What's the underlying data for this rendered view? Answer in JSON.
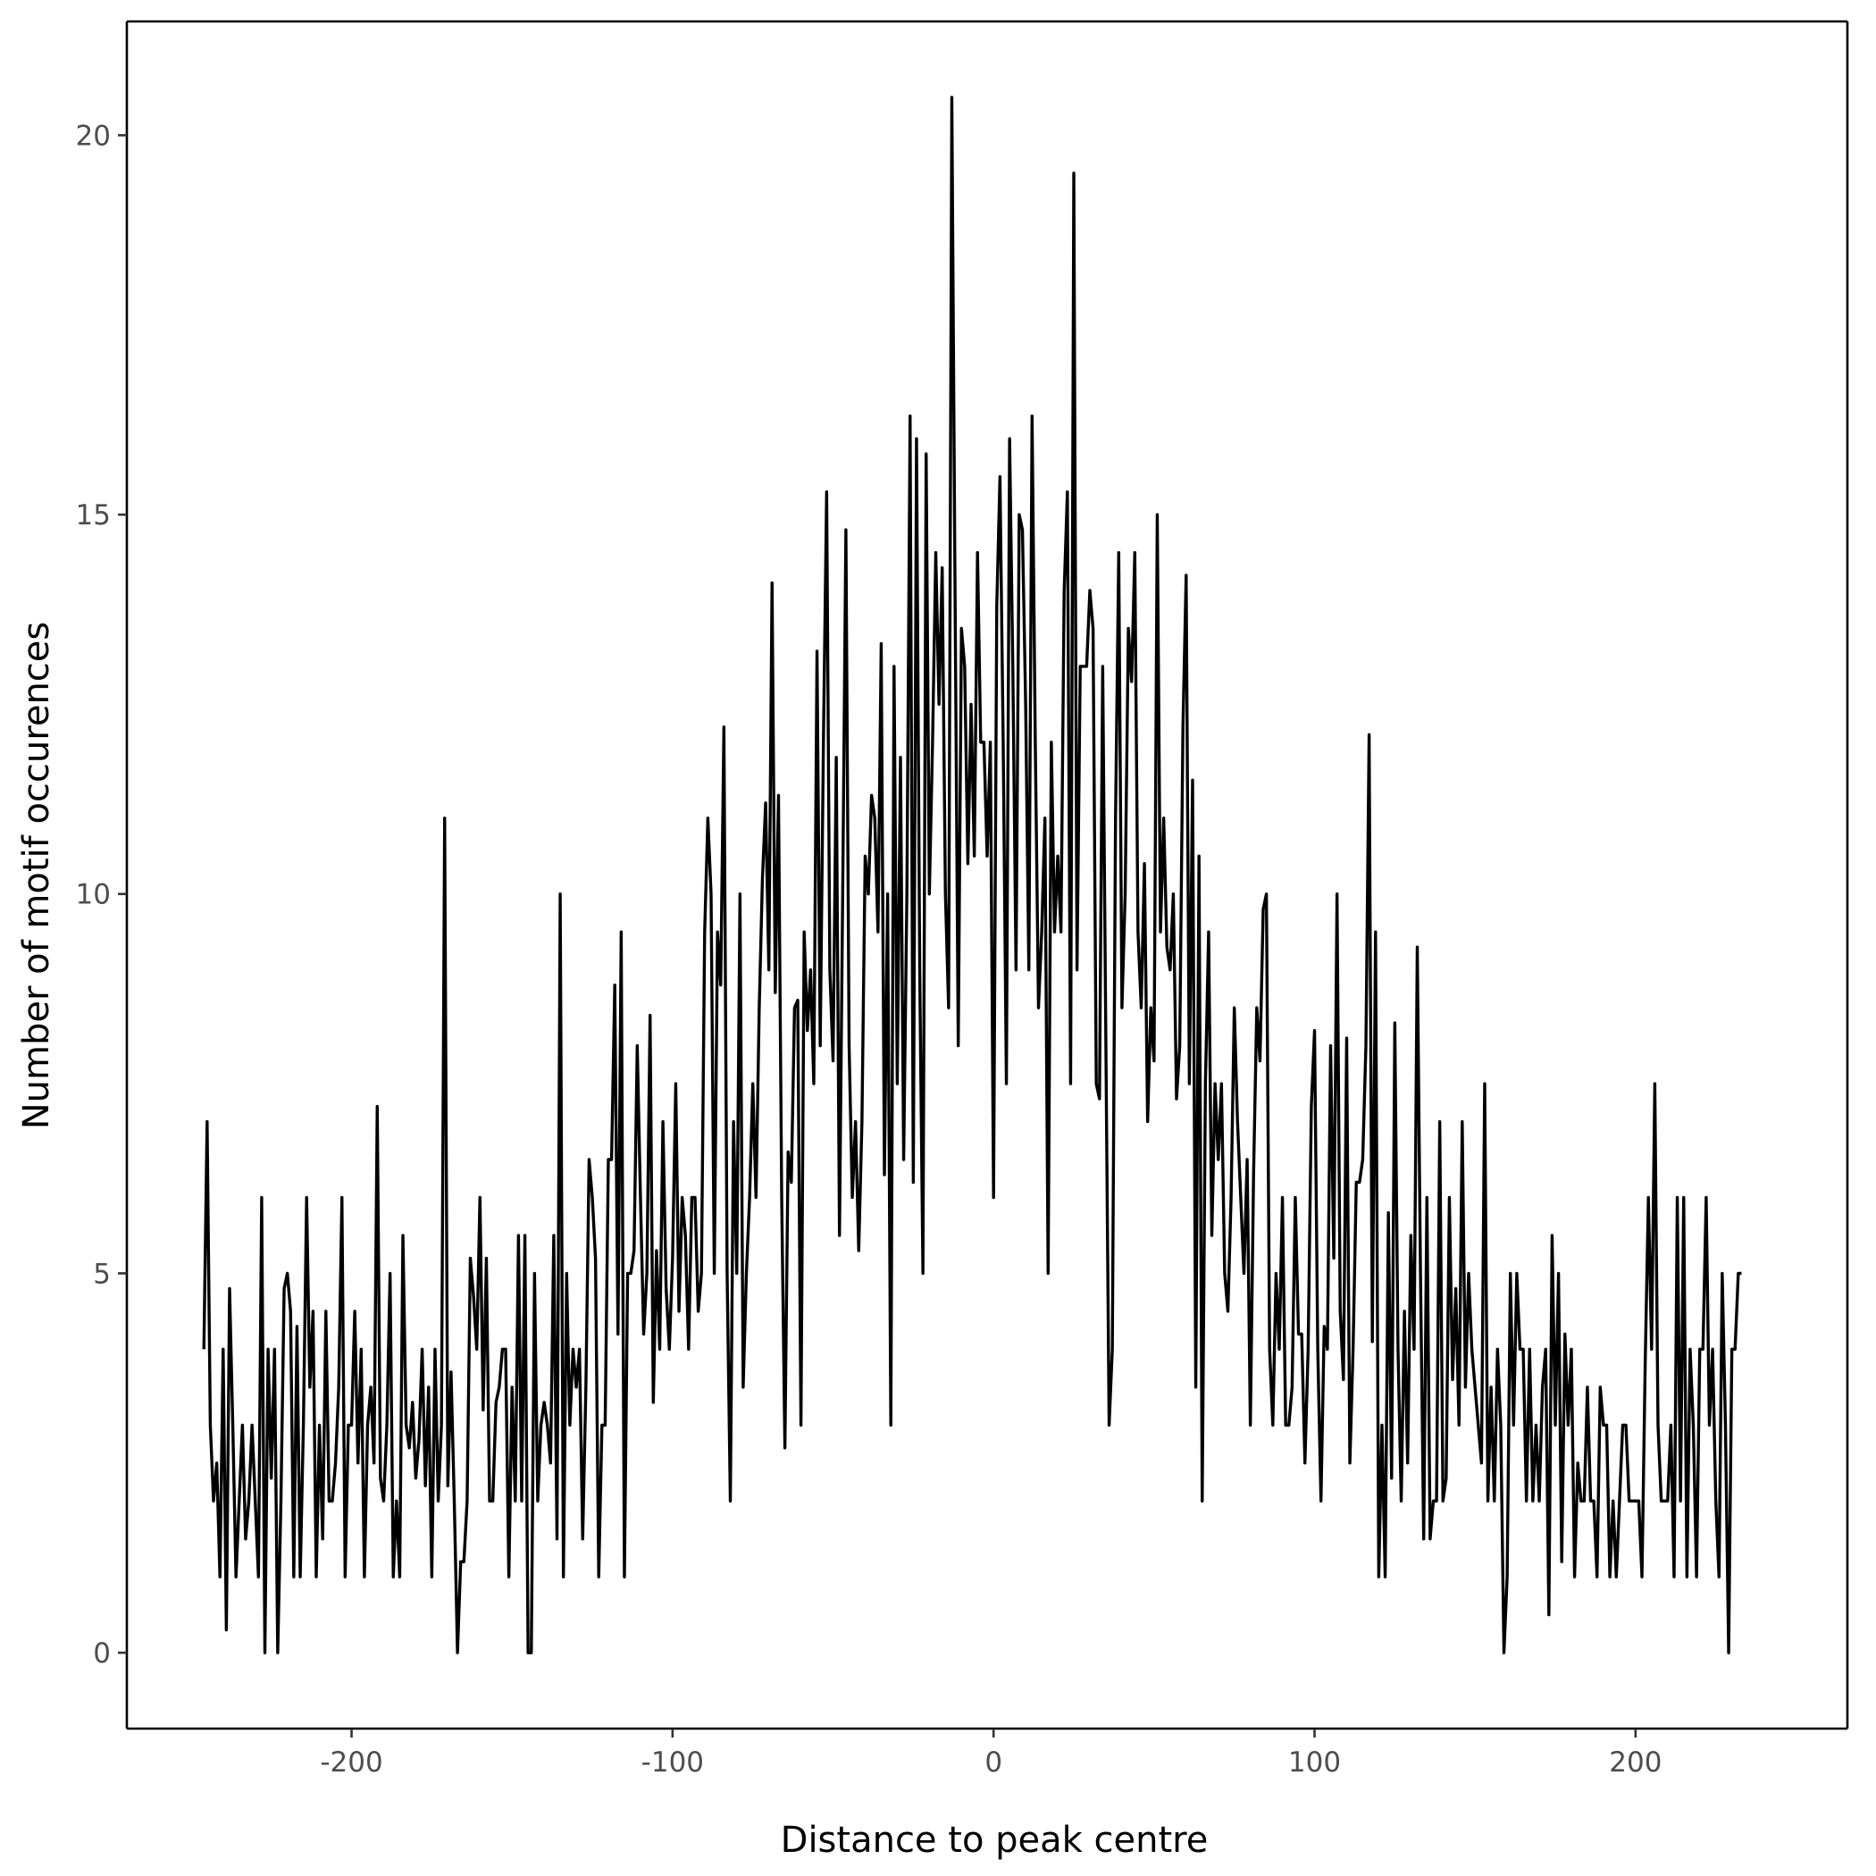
{
  "chart_data": {
    "type": "line",
    "title": "",
    "xlabel": "Distance to peak centre",
    "ylabel": "Number of motif occurences",
    "xlim": [
      -270,
      266
    ],
    "ylim": [
      -1.0,
      21.5
    ],
    "grid": false,
    "legend": "none",
    "line_color": "#000000",
    "x_ticks": [
      {
        "value": -200,
        "label": "-200"
      },
      {
        "value": -100,
        "label": "-100"
      },
      {
        "value": 0,
        "label": "0"
      },
      {
        "value": 100,
        "label": "100"
      },
      {
        "value": 200,
        "label": "200"
      }
    ],
    "y_ticks": [
      {
        "value": 0,
        "label": "0"
      },
      {
        "value": 5,
        "label": "5"
      },
      {
        "value": 10,
        "label": "10"
      },
      {
        "value": 15,
        "label": "15"
      },
      {
        "value": 20,
        "label": "20"
      }
    ],
    "x_start": -246,
    "x_step": 1,
    "series": [
      {
        "values": [
          4,
          7,
          3,
          2,
          2.5,
          1,
          4,
          0.3,
          4.8,
          3,
          1,
          2,
          3,
          1.5,
          2,
          3,
          2,
          1,
          6,
          0,
          4,
          2.3,
          4,
          0,
          2,
          4.8,
          5,
          4.5,
          1,
          4.3,
          1,
          3,
          6,
          3.5,
          4.5,
          1,
          3,
          1.5,
          4.5,
          2,
          2,
          2.5,
          3.5,
          6,
          1,
          3,
          3,
          4.5,
          2.5,
          4,
          1,
          3,
          3.5,
          2.5,
          7.2,
          2.3,
          2,
          3,
          5,
          1,
          2,
          1,
          5.5,
          3,
          2.7,
          3.3,
          2.3,
          2.8,
          4,
          2.2,
          3.5,
          1,
          4,
          2,
          3,
          11,
          2.2,
          3.7,
          2,
          0,
          1.2,
          1.2,
          2,
          5.2,
          4.7,
          4,
          6,
          3.2,
          5.2,
          2,
          2,
          3.3,
          3.5,
          4,
          4,
          1,
          3.5,
          2,
          5.5,
          2,
          5.5,
          0,
          0,
          5,
          2,
          3,
          3.3,
          3,
          2.5,
          5.5,
          1.5,
          10,
          1,
          5,
          3,
          4,
          3.5,
          4,
          1.5,
          3.5,
          6.5,
          6,
          5.2,
          1,
          3,
          3,
          6.5,
          6.5,
          8.8,
          4.2,
          9.5,
          1,
          5,
          5,
          5.3,
          8,
          6,
          4.2,
          5,
          8.4,
          3.3,
          5.3,
          4,
          7,
          4.8,
          4,
          5.2,
          7.5,
          4.5,
          6,
          5.5,
          4,
          6,
          6,
          4.5,
          5,
          9.5,
          11,
          10,
          5,
          9.5,
          8.8,
          12.2,
          5,
          2,
          7,
          5,
          10,
          3.5,
          5,
          6,
          7.5,
          6,
          8.5,
          10.2,
          11.2,
          9,
          14.1,
          8.7,
          11.3,
          6,
          2.7,
          6.6,
          6.2,
          8.5,
          8.6,
          3,
          9.5,
          8.2,
          9,
          7.5,
          13.2,
          8,
          12,
          15.3,
          9,
          7.8,
          11.8,
          5.5,
          10,
          14.8,
          8,
          6,
          7,
          5.3,
          7,
          10.5,
          10,
          11.3,
          11,
          9.5,
          13.3,
          6.3,
          10,
          3,
          13,
          7.5,
          11.8,
          6.5,
          10,
          16.3,
          6.2,
          16,
          9,
          5,
          15.8,
          10,
          12,
          14.5,
          12.5,
          14.3,
          10,
          8.5,
          20.5,
          14,
          8,
          13.5,
          13,
          10.4,
          12.5,
          10.5,
          14.5,
          12,
          12,
          10.5,
          12,
          6,
          13.8,
          15.5,
          12,
          7.5,
          16,
          13,
          9,
          15,
          14.8,
          12.5,
          9,
          16.3,
          12,
          8.5,
          9.5,
          11,
          5,
          12,
          9.5,
          10.5,
          9.5,
          14,
          15.3,
          7.5,
          19.5,
          9,
          13,
          13,
          13,
          14,
          13.5,
          7.5,
          7.3,
          13,
          8,
          3,
          4,
          11,
          14.5,
          8.5,
          10,
          13.5,
          12.8,
          14.5,
          9.5,
          8.5,
          10.4,
          7,
          8.5,
          7.8,
          15,
          9.5,
          11,
          9.3,
          9,
          10,
          7.3,
          8,
          12.2,
          14.2,
          7.5,
          11.5,
          3.5,
          10.5,
          2,
          7.5,
          9.5,
          5.5,
          7.5,
          6.5,
          7.5,
          5,
          4.5,
          6,
          8.5,
          7,
          6,
          5,
          6.5,
          3,
          6.3,
          8.5,
          7.8,
          9.8,
          10,
          4,
          3,
          5,
          4,
          6,
          3,
          3,
          3.5,
          6,
          4.2,
          4.2,
          2.5,
          4,
          7.2,
          8.2,
          4,
          2,
          4.3,
          4,
          8,
          5.2,
          10,
          4.5,
          3.6,
          8.1,
          2.5,
          4,
          6.2,
          6.2,
          6.5,
          8,
          12.1,
          4.1,
          9.5,
          1,
          3,
          1,
          5.8,
          2.3,
          8.3,
          4,
          2,
          4.5,
          2.5,
          5.5,
          4,
          9.3,
          5,
          1.5,
          6,
          1.5,
          2,
          2,
          7,
          2,
          2.3,
          6,
          3.6,
          4.8,
          3,
          7,
          3.5,
          5,
          4,
          3.5,
          3,
          2.5,
          7.5,
          2,
          3.5,
          2,
          4,
          3,
          0,
          1,
          5,
          3,
          5,
          4,
          4,
          2,
          4,
          2,
          3,
          2,
          3.5,
          4,
          0.5,
          5.5,
          3,
          5,
          1.2,
          4.2,
          3,
          4,
          1,
          2.5,
          2,
          2,
          3.5,
          2,
          2,
          1,
          3.5,
          3,
          3,
          1,
          2,
          1,
          2,
          3,
          3,
          2,
          2,
          2,
          2,
          1,
          3.8,
          6,
          4,
          7.5,
          3,
          2,
          2,
          2,
          3,
          1,
          6,
          2,
          6,
          1,
          4,
          3,
          1,
          4,
          4,
          6,
          3,
          4,
          2,
          1,
          5,
          3,
          0,
          4,
          4,
          5,
          5
        ]
      }
    ]
  }
}
